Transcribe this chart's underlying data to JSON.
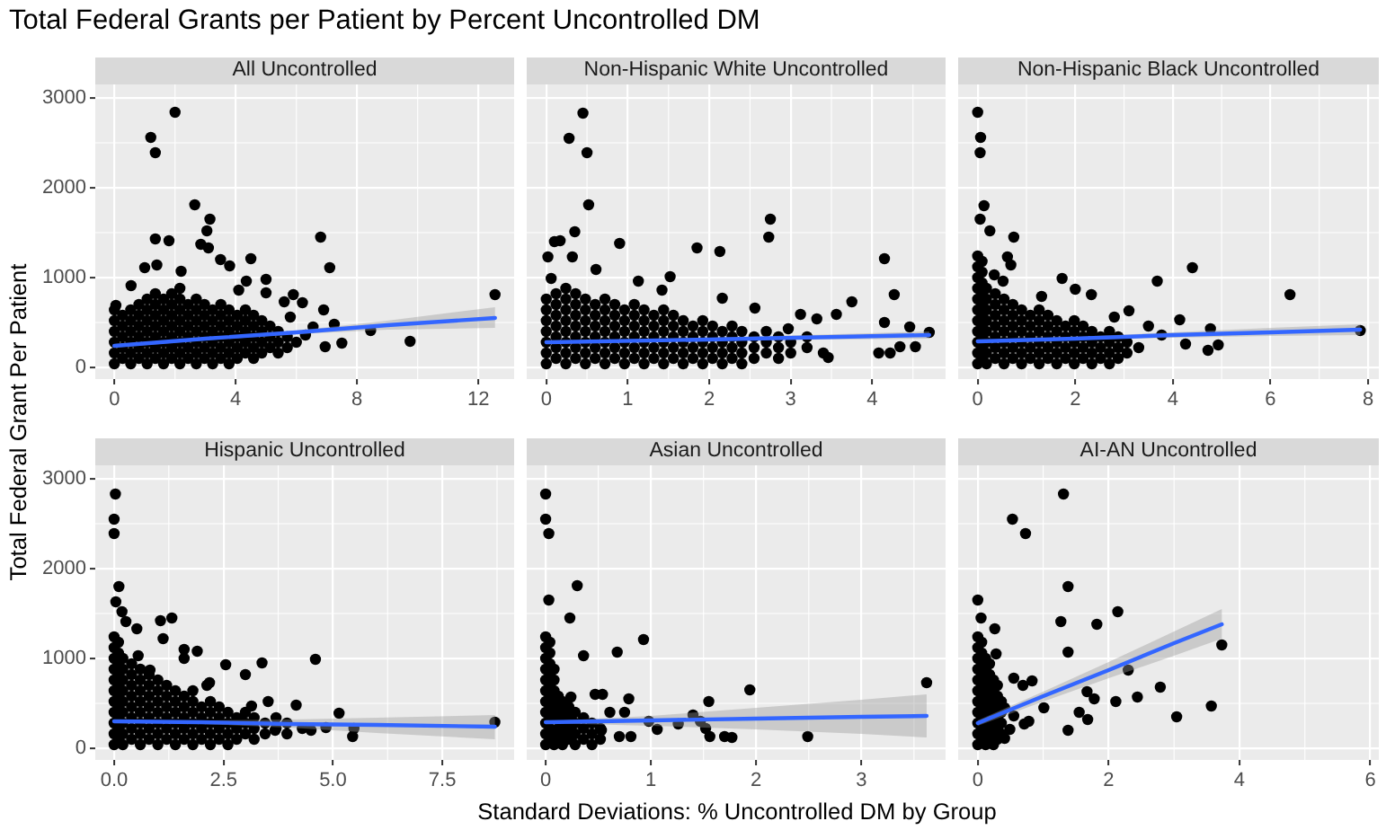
{
  "chart_data": [
    {
      "type": "scatter",
      "title": "Total Federal Grants per Patient by Percent Uncontrolled DM",
      "subtitle": "All Uncontrolled",
      "ylabel": "Total Federal Grant Per Patient",
      "xlim": [
        -0.63,
        13.18
      ],
      "xticks": [
        0,
        4,
        8,
        12
      ],
      "ylim": [
        -130,
        3150
      ],
      "yticks": [
        0,
        1000,
        2000,
        3000
      ],
      "grid": true,
      "series": [
        {
          "type": "scatter",
          "marker": "circle",
          "color": "#000000",
          "x": [
            0,
            0,
            0,
            0,
            0,
            0,
            0.27,
            0.27,
            0.27,
            0.27,
            0.27,
            0.54,
            0.54,
            0.54,
            0.54,
            0.54,
            0.54,
            0.81,
            0.81,
            0.81,
            0.81,
            0.81,
            0.81,
            1.08,
            1.08,
            1.08,
            1.08,
            1.08,
            1.08,
            1.08,
            1.35,
            1.35,
            1.35,
            1.35,
            1.35,
            1.35,
            1.35,
            1.62,
            1.62,
            1.62,
            1.62,
            1.62,
            1.62,
            1.62,
            1.89,
            1.89,
            1.89,
            1.89,
            1.89,
            1.89,
            1.89,
            2.16,
            2.16,
            2.16,
            2.16,
            2.16,
            2.16,
            2.16,
            2.16,
            2.43,
            2.43,
            2.43,
            2.43,
            2.43,
            2.43,
            2.7,
            2.7,
            2.7,
            2.7,
            2.7,
            2.7,
            2.7,
            2.97,
            2.97,
            2.97,
            2.97,
            2.97,
            2.97,
            3.24,
            3.24,
            3.24,
            3.24,
            3.24,
            3.24,
            3.51,
            3.51,
            3.51,
            3.51,
            3.51,
            3.51,
            3.78,
            3.78,
            3.78,
            3.78,
            3.78,
            3.78,
            4.05,
            4.05,
            4.05,
            4.05,
            4.05,
            4.32,
            4.32,
            4.32,
            4.32,
            4.32,
            4.59,
            4.59,
            4.59,
            4.59,
            4.59,
            4.86,
            4.86,
            4.86,
            4.86,
            5.13,
            5.13,
            5.13,
            5.4,
            5.4,
            5.4,
            5.7,
            5.7,
            6.0,
            2.0,
            1.2,
            1.35,
            2.65,
            3.15,
            3.05,
            1.35,
            1.8,
            2.85,
            3.1,
            6.8,
            7.1,
            4.5,
            3.8,
            3.5,
            12.55,
            9.75,
            8.45,
            7.5,
            7.25,
            6.9,
            6.55,
            6.95,
            5.9,
            6.2,
            5.0,
            5.6,
            5.0,
            0.05,
            0.55,
            1.0,
            1.4,
            2.2,
            4.35,
            4.1,
            5.8,
            6.3
          ],
          "values": [
            40,
            160,
            280,
            400,
            520,
            640,
            100,
            220,
            340,
            460,
            580,
            40,
            160,
            280,
            400,
            520,
            640,
            100,
            220,
            340,
            460,
            580,
            700,
            40,
            160,
            280,
            400,
            520,
            640,
            760,
            100,
            220,
            340,
            460,
            580,
            700,
            820,
            40,
            160,
            280,
            400,
            520,
            640,
            760,
            100,
            220,
            340,
            460,
            580,
            700,
            820,
            40,
            160,
            280,
            400,
            520,
            640,
            760,
            880,
            100,
            220,
            340,
            460,
            580,
            700,
            40,
            160,
            280,
            400,
            520,
            640,
            760,
            100,
            220,
            340,
            460,
            580,
            700,
            40,
            160,
            280,
            400,
            520,
            640,
            100,
            220,
            340,
            460,
            580,
            700,
            40,
            160,
            280,
            400,
            520,
            640,
            100,
            220,
            340,
            460,
            580,
            160,
            280,
            400,
            520,
            640,
            100,
            220,
            340,
            460,
            580,
            160,
            280,
            400,
            520,
            220,
            340,
            460,
            160,
            280,
            400,
            220,
            340,
            280,
            2840,
            2560,
            2390,
            1810,
            1650,
            1520,
            1430,
            1410,
            1370,
            1330,
            1450,
            1110,
            1210,
            1130,
            1200,
            810,
            290,
            410,
            270,
            480,
            640,
            450,
            230,
            810,
            720,
            830,
            730,
            980,
            690,
            910,
            1110,
            1140,
            1070,
            960,
            860,
            560,
            360
          ]
        },
        {
          "type": "line",
          "marker": "none",
          "color": "#3366ff",
          "x": [
            0,
            3,
            6,
            9,
            12.55
          ],
          "values": [
            240,
            320,
            390,
            470,
            550
          ],
          "lower": [
            220,
            300,
            370,
            420,
            440
          ],
          "upper": [
            260,
            330,
            410,
            520,
            670
          ]
        }
      ]
    },
    {
      "type": "scatter",
      "subtitle": "Non-Hispanic White Uncontrolled",
      "xlim": [
        -0.24,
        4.9
      ],
      "xticks": [
        0,
        1,
        2,
        3,
        4
      ],
      "ylim": [
        -130,
        3150
      ],
      "yticks": [
        0,
        1000,
        2000,
        3000
      ],
      "tick_labels": "x",
      "grid": true,
      "series": [
        {
          "type": "scatter",
          "marker": "circle",
          "color": "#000000",
          "x": [
            0,
            0,
            0,
            0,
            0,
            0,
            0,
            0.12,
            0.12,
            0.12,
            0.12,
            0.12,
            0.12,
            0.12,
            0.24,
            0.24,
            0.24,
            0.24,
            0.24,
            0.24,
            0.24,
            0.24,
            0.36,
            0.36,
            0.36,
            0.36,
            0.36,
            0.36,
            0.36,
            0.48,
            0.48,
            0.48,
            0.48,
            0.48,
            0.48,
            0.48,
            0.6,
            0.6,
            0.6,
            0.6,
            0.6,
            0.6,
            0.72,
            0.72,
            0.72,
            0.72,
            0.72,
            0.72,
            0.72,
            0.84,
            0.84,
            0.84,
            0.84,
            0.84,
            0.84,
            0.96,
            0.96,
            0.96,
            0.96,
            0.96,
            0.96,
            1.08,
            1.08,
            1.08,
            1.08,
            1.08,
            1.08,
            1.2,
            1.2,
            1.2,
            1.2,
            1.2,
            1.2,
            1.32,
            1.32,
            1.32,
            1.32,
            1.32,
            1.44,
            1.44,
            1.44,
            1.44,
            1.44,
            1.44,
            1.56,
            1.56,
            1.56,
            1.56,
            1.56,
            1.68,
            1.68,
            1.68,
            1.68,
            1.68,
            1.8,
            1.8,
            1.8,
            1.8,
            1.92,
            1.92,
            1.92,
            1.92,
            1.92,
            2.04,
            2.04,
            2.04,
            2.04,
            2.16,
            2.16,
            2.16,
            2.16,
            2.28,
            2.28,
            2.28,
            2.28,
            2.4,
            2.4,
            2.4,
            2.4,
            2.55,
            2.55,
            2.55,
            2.7,
            2.7,
            2.7,
            2.85,
            2.85,
            2.85,
            3.0,
            3.0,
            3.2,
            3.2,
            3.4,
            0.45,
            0.28,
            0.5,
            0.52,
            2.75,
            2.73,
            0.35,
            1.85,
            2.13,
            0.9,
            0.17,
            0.1,
            4.15,
            4.27,
            3.75,
            4.15,
            4.46,
            4.7,
            4.53,
            4.34,
            4.22,
            4.08,
            3.46,
            3.56,
            3.32,
            3.12,
            2.56,
            2.16,
            1.52,
            1.42,
            1.13,
            0.61,
            0.32,
            0.02,
            0.06,
            2.97
          ],
          "values": [
            40,
            160,
            280,
            400,
            520,
            640,
            760,
            100,
            220,
            340,
            460,
            580,
            700,
            820,
            40,
            160,
            280,
            400,
            520,
            640,
            760,
            880,
            100,
            220,
            340,
            460,
            580,
            700,
            820,
            40,
            160,
            280,
            400,
            520,
            640,
            760,
            100,
            220,
            340,
            460,
            580,
            700,
            40,
            160,
            280,
            400,
            520,
            640,
            760,
            100,
            220,
            340,
            460,
            580,
            700,
            40,
            160,
            280,
            400,
            520,
            640,
            100,
            220,
            340,
            460,
            580,
            700,
            40,
            160,
            280,
            400,
            520,
            640,
            100,
            220,
            340,
            460,
            580,
            40,
            160,
            280,
            400,
            520,
            640,
            100,
            220,
            340,
            460,
            580,
            40,
            160,
            280,
            400,
            520,
            100,
            220,
            340,
            460,
            40,
            160,
            280,
            400,
            520,
            100,
            220,
            340,
            460,
            40,
            160,
            280,
            400,
            100,
            220,
            340,
            460,
            40,
            160,
            280,
            400,
            100,
            220,
            340,
            160,
            280,
            400,
            100,
            220,
            340,
            160,
            280,
            220,
            340,
            160,
            2830,
            2550,
            2390,
            1810,
            1650,
            1450,
            1510,
            1330,
            1290,
            1380,
            1410,
            1400,
            1210,
            810,
            730,
            500,
            450,
            390,
            230,
            230,
            160,
            160,
            110,
            590,
            540,
            590,
            660,
            770,
            1010,
            860,
            960,
            1090,
            1230,
            1230,
            990,
            430
          ]
        },
        {
          "type": "line",
          "marker": "none",
          "color": "#3366ff",
          "x": [
            0,
            2,
            4.7
          ],
          "values": [
            280,
            310,
            360
          ],
          "lower": [
            270,
            300,
            320
          ],
          "upper": [
            290,
            330,
            400
          ]
        }
      ]
    },
    {
      "type": "scatter",
      "subtitle": "Non-Hispanic Black Uncontrolled",
      "xlim": [
        -0.4,
        8.22
      ],
      "xticks": [
        0,
        2,
        4,
        6,
        8
      ],
      "ylim": [
        -130,
        3150
      ],
      "yticks": [
        0,
        1000,
        2000,
        3000
      ],
      "tick_labels": "x",
      "grid": true,
      "series": [
        {
          "type": "scatter",
          "marker": "circle",
          "color": "#000000",
          "x": [
            0,
            0,
            0,
            0,
            0,
            0,
            0,
            0,
            0,
            0,
            0,
            0.09,
            0.09,
            0.09,
            0.09,
            0.09,
            0.09,
            0.09,
            0.09,
            0.09,
            0.09,
            0.18,
            0.18,
            0.18,
            0.18,
            0.18,
            0.18,
            0.18,
            0.18,
            0.36,
            0.36,
            0.36,
            0.36,
            0.36,
            0.36,
            0.36,
            0.54,
            0.54,
            0.54,
            0.54,
            0.54,
            0.54,
            0.54,
            0.72,
            0.72,
            0.72,
            0.72,
            0.72,
            0.72,
            0.9,
            0.9,
            0.9,
            0.9,
            0.9,
            0.9,
            1.08,
            1.08,
            1.08,
            1.08,
            1.08,
            1.26,
            1.26,
            1.26,
            1.26,
            1.26,
            1.26,
            1.44,
            1.44,
            1.44,
            1.44,
            1.44,
            1.62,
            1.62,
            1.62,
            1.62,
            1.62,
            1.8,
            1.8,
            1.8,
            1.8,
            1.98,
            1.98,
            1.98,
            1.98,
            1.98,
            2.16,
            2.16,
            2.16,
            2.16,
            2.34,
            2.34,
            2.34,
            2.34,
            2.52,
            2.52,
            2.52,
            2.7,
            2.7,
            2.7,
            2.7,
            2.88,
            2.88,
            2.88,
            3.06,
            3.06,
            3.3,
            0.0,
            0.06,
            0.05,
            0.13,
            0.05,
            0.25,
            0.74,
            0.61,
            0.68,
            4.4,
            3.68,
            6.4,
            7.84,
            1.73,
            2.0,
            2.33,
            1.31,
            0.34,
            0.52,
            4.77,
            4.72,
            4.93,
            4.14,
            4.26,
            3.77,
            3.1,
            2.8,
            3.5
          ],
          "values": [
            40,
            160,
            280,
            400,
            520,
            640,
            760,
            880,
            1000,
            1120,
            1240,
            100,
            220,
            340,
            460,
            580,
            700,
            820,
            940,
            1060,
            1180,
            40,
            160,
            280,
            400,
            520,
            640,
            760,
            880,
            100,
            220,
            340,
            460,
            580,
            700,
            820,
            40,
            160,
            280,
            400,
            520,
            640,
            760,
            100,
            220,
            340,
            460,
            580,
            700,
            40,
            160,
            280,
            400,
            520,
            640,
            100,
            220,
            340,
            460,
            580,
            40,
            160,
            280,
            400,
            520,
            640,
            100,
            220,
            340,
            460,
            580,
            40,
            160,
            280,
            400,
            520,
            100,
            220,
            340,
            460,
            40,
            160,
            280,
            400,
            520,
            100,
            220,
            340,
            460,
            40,
            160,
            280,
            400,
            100,
            220,
            340,
            40,
            160,
            280,
            400,
            100,
            220,
            340,
            160,
            280,
            220,
            2840,
            2560,
            2390,
            1800,
            1650,
            1520,
            1450,
            1230,
            1140,
            1110,
            960,
            810,
            410,
            990,
            870,
            810,
            790,
            1030,
            960,
            430,
            190,
            250,
            530,
            260,
            360,
            630,
            560,
            460
          ]
        },
        {
          "type": "line",
          "marker": "none",
          "color": "#3366ff",
          "x": [
            0,
            2,
            4,
            6,
            7.84
          ],
          "values": [
            290,
            320,
            360,
            390,
            420
          ],
          "lower": [
            280,
            310,
            330,
            350,
            360
          ],
          "upper": [
            300,
            340,
            390,
            440,
            480
          ]
        }
      ]
    },
    {
      "type": "scatter",
      "subtitle": "Hispanic Uncontrolled",
      "xlim": [
        -0.43,
        9.14
      ],
      "xticks": [
        {
          "value": 0,
          "label": "0.0"
        },
        2.5,
        {
          "value": 5,
          "label": "5.0"
        },
        7.5
      ],
      "ylim": [
        -130,
        3150
      ],
      "yticks": [
        0,
        1000,
        2000,
        3000
      ],
      "grid": true,
      "series": [
        {
          "type": "scatter",
          "marker": "circle",
          "color": "#000000",
          "x": [
            0,
            0,
            0,
            0,
            0,
            0,
            0,
            0,
            0,
            0,
            0,
            0.1,
            0.1,
            0.1,
            0.1,
            0.1,
            0.1,
            0.1,
            0.1,
            0.1,
            0.1,
            0.2,
            0.2,
            0.2,
            0.2,
            0.2,
            0.2,
            0.2,
            0.2,
            0.2,
            0.4,
            0.4,
            0.4,
            0.4,
            0.4,
            0.4,
            0.4,
            0.4,
            0.6,
            0.6,
            0.6,
            0.6,
            0.6,
            0.6,
            0.6,
            0.6,
            0.8,
            0.8,
            0.8,
            0.8,
            0.8,
            0.8,
            0.8,
            1.0,
            1.0,
            1.0,
            1.0,
            1.0,
            1.0,
            1.0,
            1.2,
            1.2,
            1.2,
            1.2,
            1.2,
            1.2,
            1.4,
            1.4,
            1.4,
            1.4,
            1.4,
            1.4,
            1.6,
            1.6,
            1.6,
            1.6,
            1.6,
            1.8,
            1.8,
            1.8,
            1.8,
            1.8,
            1.8,
            2.0,
            2.0,
            2.0,
            2.0,
            2.2,
            2.2,
            2.2,
            2.2,
            2.2,
            2.4,
            2.4,
            2.4,
            2.4,
            2.6,
            2.6,
            2.6,
            2.6,
            2.8,
            2.8,
            2.8,
            3.0,
            3.0,
            3.0,
            3.2,
            3.2,
            3.2,
            3.45,
            3.45,
            3.7,
            3.7,
            3.95,
            3.95,
            4.3,
            0.03,
            0.0,
            0.0,
            0.11,
            0.04,
            0.18,
            0.27,
            0.52,
            1.06,
            1.32,
            1.12,
            1.6,
            1.9,
            1.6,
            4.6,
            3.38,
            2.55,
            3.0,
            8.7,
            5.14,
            5.45,
            5.48,
            4.84,
            4.5,
            4.16,
            3.52,
            3.14,
            2.87,
            3.68,
            2.18,
            2.12,
            0.82,
            0.55
          ],
          "values": [
            40,
            160,
            280,
            400,
            520,
            640,
            760,
            880,
            1000,
            1120,
            1240,
            100,
            220,
            340,
            460,
            580,
            700,
            820,
            940,
            1060,
            1180,
            40,
            160,
            280,
            400,
            520,
            640,
            760,
            880,
            1000,
            100,
            220,
            340,
            460,
            580,
            700,
            820,
            940,
            40,
            160,
            280,
            400,
            520,
            640,
            760,
            880,
            100,
            220,
            340,
            460,
            580,
            700,
            820,
            40,
            160,
            280,
            400,
            520,
            640,
            760,
            100,
            220,
            340,
            460,
            580,
            700,
            40,
            160,
            280,
            400,
            520,
            640,
            100,
            220,
            340,
            460,
            580,
            40,
            160,
            280,
            400,
            520,
            640,
            100,
            220,
            340,
            460,
            40,
            160,
            280,
            400,
            520,
            100,
            220,
            340,
            460,
            40,
            160,
            280,
            400,
            100,
            220,
            340,
            160,
            280,
            400,
            100,
            220,
            340,
            160,
            280,
            220,
            340,
            160,
            280,
            220,
            2830,
            2550,
            2390,
            1800,
            1630,
            1520,
            1410,
            1330,
            1420,
            1450,
            1220,
            1100,
            1080,
            1000,
            990,
            950,
            930,
            820,
            290,
            390,
            130,
            220,
            230,
            200,
            480,
            520,
            470,
            330,
            200,
            730,
            700,
            870,
            1030
          ]
        },
        {
          "type": "line",
          "marker": "none",
          "color": "#3366ff",
          "x": [
            0,
            2,
            4,
            6,
            8.7
          ],
          "values": [
            300,
            290,
            270,
            260,
            240
          ],
          "lower": [
            290,
            270,
            230,
            170,
            100
          ],
          "upper": [
            310,
            310,
            320,
            340,
            370
          ]
        }
      ]
    },
    {
      "type": "scatter",
      "subtitle": "Asian Uncontrolled",
      "xlabel": "Standard Deviations: % Uncontrolled DM by Group",
      "xlim": [
        -0.18,
        3.8
      ],
      "xticks": [
        0,
        1,
        2,
        3
      ],
      "ylim": [
        -130,
        3150
      ],
      "yticks": [
        0,
        1000,
        2000,
        3000
      ],
      "tick_labels": "x",
      "grid": true,
      "series": [
        {
          "type": "scatter",
          "marker": "circle",
          "color": "#000000",
          "x": [
            0,
            0,
            0,
            0,
            0,
            0,
            0,
            0,
            0,
            0,
            0,
            0.04,
            0.04,
            0.04,
            0.04,
            0.04,
            0.04,
            0.04,
            0.04,
            0.04,
            0.04,
            0.08,
            0.08,
            0.08,
            0.08,
            0.08,
            0.08,
            0.08,
            0.12,
            0.12,
            0.12,
            0.12,
            0.12,
            0.16,
            0.16,
            0.16,
            0.16,
            0.16,
            0.22,
            0.22,
            0.22,
            0.22,
            0.28,
            0.28,
            0.28,
            0.28,
            0.36,
            0.36,
            0.36,
            0.44,
            0.44,
            0.44,
            0.52,
            0.52,
            0.0,
            0.0,
            0.03,
            0.3,
            0.23,
            0.03,
            0.36,
            0.93,
            0.68,
            1.94,
            3.62,
            1.55,
            2.49,
            1.77,
            1.7,
            1.47,
            1.56,
            1.52,
            1.4,
            1.26,
            1.06,
            0.98,
            0.79,
            0.75,
            0.81,
            0.7,
            0.54,
            0.47,
            0.61,
            0.24,
            0.53
          ],
          "values": [
            40,
            160,
            280,
            400,
            520,
            640,
            760,
            880,
            1000,
            1120,
            1240,
            100,
            220,
            340,
            460,
            580,
            700,
            820,
            940,
            1060,
            1180,
            40,
            160,
            400,
            520,
            640,
            760,
            880,
            100,
            220,
            340,
            460,
            580,
            40,
            160,
            280,
            400,
            520,
            100,
            220,
            340,
            460,
            40,
            160,
            280,
            400,
            100,
            220,
            340,
            40,
            160,
            280,
            100,
            220,
            2830,
            2550,
            2390,
            1810,
            1450,
            1650,
            1030,
            1210,
            1070,
            650,
            730,
            520,
            130,
            120,
            130,
            300,
            130,
            220,
            370,
            270,
            210,
            300,
            550,
            400,
            130,
            130,
            600,
            600,
            400,
            570,
            200
          ]
        },
        {
          "type": "line",
          "marker": "none",
          "color": "#3366ff",
          "x": [
            0,
            1,
            2,
            3,
            3.62
          ],
          "values": [
            290,
            310,
            330,
            350,
            360
          ],
          "lower": [
            280,
            250,
            210,
            160,
            120
          ],
          "upper": [
            300,
            360,
            450,
            540,
            600
          ]
        }
      ]
    },
    {
      "type": "scatter",
      "subtitle": "AI-AN Uncontrolled",
      "xlim": [
        -0.3,
        6.13
      ],
      "xticks": [
        0,
        2,
        4,
        6
      ],
      "ylim": [
        -130,
        3150
      ],
      "yticks": [
        0,
        1000,
        2000,
        3000
      ],
      "tick_labels": "x",
      "grid": true,
      "series": [
        {
          "type": "scatter",
          "marker": "circle",
          "color": "#000000",
          "x": [
            0,
            0,
            0,
            0,
            0,
            0,
            0,
            0,
            0,
            0,
            0,
            0.06,
            0.06,
            0.06,
            0.06,
            0.06,
            0.06,
            0.06,
            0.06,
            0.06,
            0.06,
            0.12,
            0.12,
            0.12,
            0.12,
            0.12,
            0.12,
            0.12,
            0.12,
            0.12,
            0.18,
            0.18,
            0.18,
            0.18,
            0.18,
            0.18,
            0.18,
            0.24,
            0.24,
            0.24,
            0.24,
            0.24,
            0.24,
            0.24,
            0.3,
            0.3,
            0.3,
            0.3,
            0.3,
            0.3,
            0.36,
            0.36,
            0.36,
            0.36,
            1.31,
            0.53,
            0.73,
            1.38,
            2.14,
            1.27,
            1.82,
            1.38,
            3.73,
            2.3,
            2.79,
            2.44,
            3.57,
            3.04,
            2.11,
            1.78,
            1.67,
            1.68,
            1.55,
            1.38,
            1.01,
            0.71,
            0.78,
            0.55,
            0.83,
            0.69,
            0.55,
            0.41,
            0.49,
            0.41,
            0.26,
            0.28,
            0.05,
            0.0
          ],
          "values": [
            40,
            160,
            280,
            400,
            520,
            640,
            760,
            880,
            1000,
            1120,
            1240,
            100,
            220,
            340,
            460,
            580,
            700,
            820,
            940,
            1060,
            1180,
            40,
            160,
            280,
            400,
            520,
            640,
            760,
            880,
            1000,
            100,
            220,
            460,
            580,
            700,
            820,
            940,
            40,
            160,
            280,
            400,
            520,
            640,
            760,
            100,
            220,
            340,
            460,
            580,
            700,
            160,
            280,
            400,
            520,
            2830,
            2550,
            2390,
            1800,
            1520,
            1410,
            1380,
            1070,
            1150,
            870,
            680,
            570,
            470,
            350,
            520,
            550,
            630,
            320,
            400,
            200,
            450,
            270,
            300,
            360,
            750,
            700,
            780,
            450,
            210,
            110,
            1330,
            1050,
            1450,
            1650
          ]
        },
        {
          "type": "line",
          "marker": "none",
          "color": "#3366ff",
          "x": [
            0,
            1,
            2,
            3,
            3.73
          ],
          "values": [
            280,
            580,
            870,
            1170,
            1380
          ],
          "lower": [
            250,
            520,
            780,
            1030,
            1220
          ],
          "upper": [
            310,
            630,
            960,
            1300,
            1550
          ]
        }
      ]
    }
  ]
}
